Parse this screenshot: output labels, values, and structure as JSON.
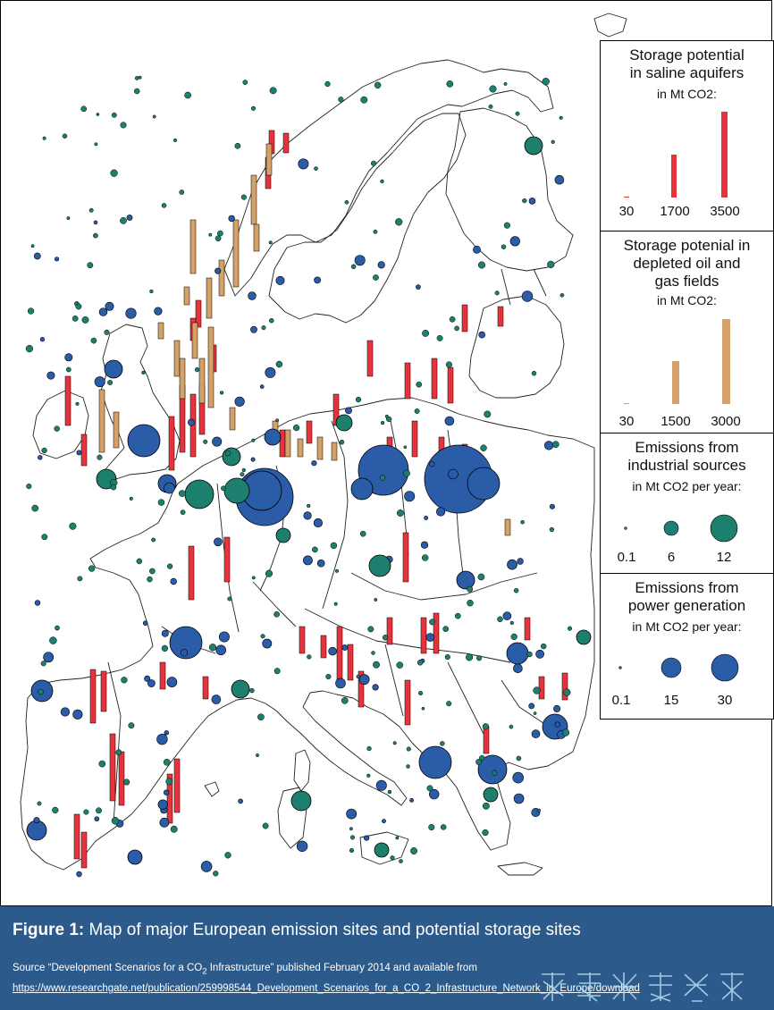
{
  "colors": {
    "saline_bar": "#e8323c",
    "depleted_bar": "#d4a168",
    "industrial": "#1d7f6e",
    "power": "#2a5ca8",
    "caption_bg": "#2b5a8b"
  },
  "legend": {
    "saline": {
      "title_line1": "Storage potential",
      "title_line2": "in saline aquifers",
      "unit": "in Mt CO2:",
      "values": [
        "30",
        "1700",
        "3500"
      ]
    },
    "depleted": {
      "title_line1": "Storage potenial in",
      "title_line2": "depleted oil and",
      "title_line3": "gas fields",
      "unit": "in Mt CO2:",
      "values": [
        "30",
        "1500",
        "3000"
      ]
    },
    "industrial": {
      "title_line1": "Emissions from",
      "title_line2": "industrial sources",
      "unit": "in Mt CO2 per year:",
      "values": [
        "0.1",
        "6",
        "12"
      ]
    },
    "power": {
      "title_line1": "Emissions from",
      "title_line2": "power generation",
      "unit": "in Mt CO2 per year:",
      "values": [
        "0.1",
        "15",
        "30"
      ]
    }
  },
  "caption": {
    "label": "Figure 1:",
    "title": " Map of major European emission sites and potential storage sites",
    "source_prefix": "Source “Development Scenarios for a CO",
    "source_sub": "2",
    "source_suffix": " Infrastructure” published February 2014 and available from",
    "link": "https://www.researchgate.net/publication/259998544_Development_Scenarios_for_a_CO_2_Infrastructure_Network_in_Europe/download"
  }
}
